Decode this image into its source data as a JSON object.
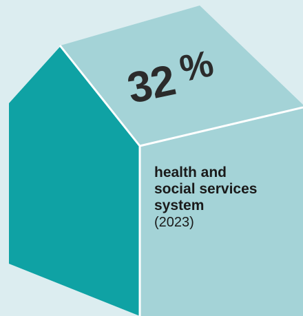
{
  "percent": {
    "number": "32",
    "sign": "%"
  },
  "label": {
    "lines": [
      "health and",
      "social services",
      "system"
    ],
    "year": "(2023)"
  },
  "colors": {
    "background": "#dcedf0",
    "roof": "#a4d3d7",
    "left_wall": "#0fa2a4",
    "front_wall": "#a4d3d7",
    "edge": "#ffffff"
  }
}
